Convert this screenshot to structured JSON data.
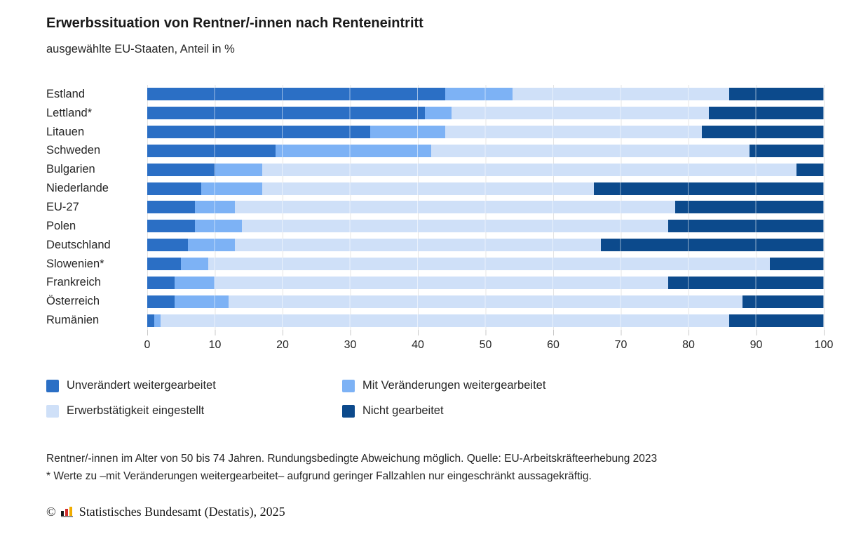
{
  "header": {
    "title": "Erwerbssituation von Rentner/-innen nach Renteneintritt",
    "subtitle": "ausgewählte EU-Staaten, Anteil in %"
  },
  "chart_data": {
    "type": "bar",
    "orientation": "horizontal",
    "stacked": true,
    "title": "Erwerbssituation von Rentner/-innen nach Renteneintritt",
    "subtitle": "ausgewählte EU-Staaten, Anteil in %",
    "xlabel": "Anteil in %",
    "ylabel": "",
    "xlim": [
      0,
      100
    ],
    "x_ticks": [
      0,
      10,
      20,
      30,
      40,
      50,
      60,
      70,
      80,
      90,
      100
    ],
    "grid": true,
    "legend_position": "bottom",
    "categories": [
      "Estland",
      "Lettland*",
      "Litauen",
      "Schweden",
      "Bulgarien",
      "Niederlande",
      "EU-27",
      "Polen",
      "Deutschland",
      "Slowenien*",
      "Frankreich",
      "Österreich",
      "Rumänien"
    ],
    "series": [
      {
        "name": "Unverändert weitergearbeitet",
        "color": "#2b6fc5",
        "values": [
          44,
          41,
          33,
          19,
          10,
          8,
          7,
          7,
          6,
          5,
          4,
          4,
          1
        ]
      },
      {
        "name": "Mit Veränderungen weitergearbeitet",
        "color": "#7db2f5",
        "values": [
          10,
          4,
          11,
          23,
          7,
          9,
          6,
          7,
          7,
          4,
          6,
          8,
          1
        ]
      },
      {
        "name": "Erwerbstätigkeit eingestellt",
        "color": "#cfe0f8",
        "values": [
          32,
          38,
          38,
          47,
          79,
          49,
          65,
          63,
          54,
          83,
          67,
          76,
          84
        ]
      },
      {
        "name": "Nicht gearbeitet",
        "color": "#0c4a8c",
        "values": [
          14,
          17,
          18,
          11,
          4,
          34,
          22,
          23,
          33,
          8,
          23,
          12,
          14
        ]
      }
    ]
  },
  "legend": {
    "items": [
      {
        "label": "Unverändert weitergearbeitet",
        "color": "#2b6fc5"
      },
      {
        "label": "Mit Veränderungen weitergearbeitet",
        "color": "#7db2f5"
      },
      {
        "label": "Erwerbstätigkeit eingestellt",
        "color": "#cfe0f8"
      },
      {
        "label": "Nicht gearbeitet",
        "color": "#0c4a8c"
      }
    ]
  },
  "footnotes": {
    "line1": "Rentner/-innen im Alter von 50 bis 74 Jahren. Rundungsbedingte Abweichung möglich. Quelle: EU-Arbeitskräfteerhebung 2023",
    "line2": "* Werte zu –mit Veränderungen weitergearbeitet– aufgrund geringer Fallzahlen nur eingeschränkt aussagekräftig."
  },
  "footer": {
    "copyright_symbol": "©",
    "logo_icon": "destatis-logo",
    "copyright_text": "Statistisches Bundesamt (Destatis), 2025"
  },
  "colors": {
    "gridline": "#e4e4e4",
    "tick": "#c9c9c9",
    "text": "#262626",
    "title": "#1a1a1a"
  }
}
